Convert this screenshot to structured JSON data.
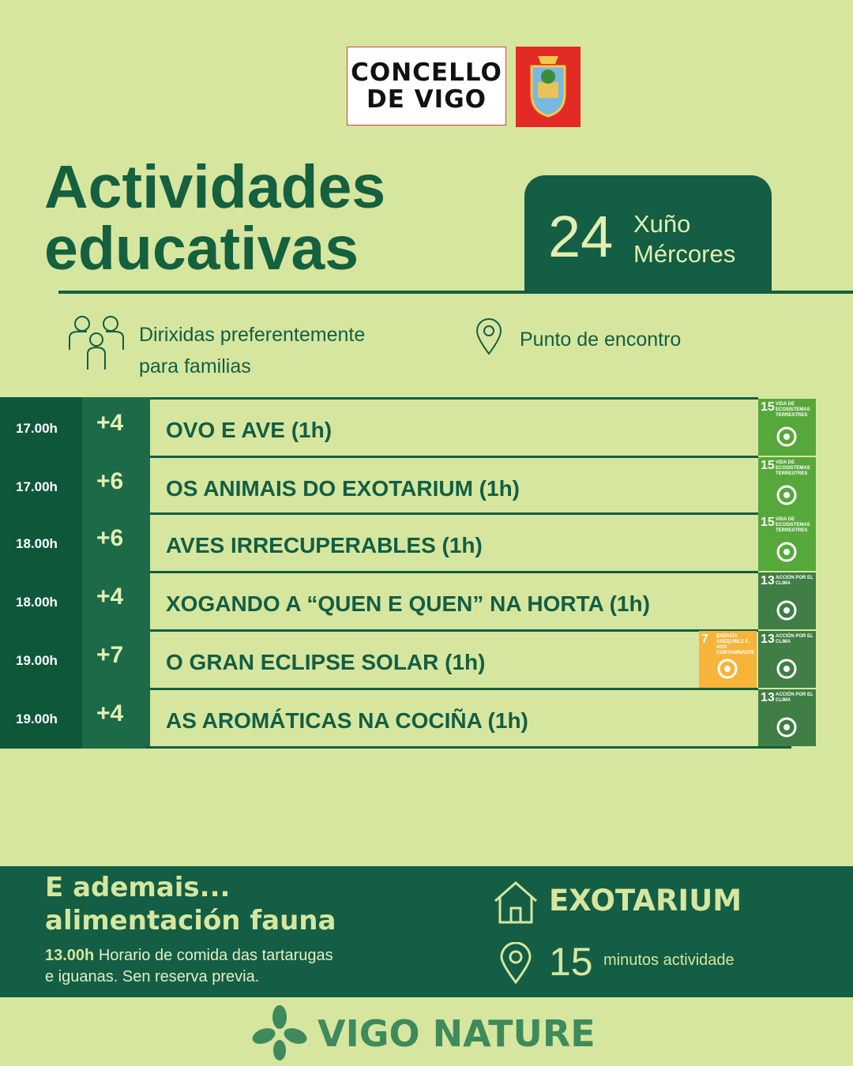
{
  "header": {
    "logo_lines": [
      "CONCELLO",
      "DE VIGO"
    ]
  },
  "title": [
    "Actividades",
    "educativas"
  ],
  "date": {
    "day": "24",
    "month": "Xuño",
    "weekday": "Mércores"
  },
  "info": {
    "audience": [
      "Dirixidas preferentemente",
      "para familias"
    ],
    "location": "Punto de encontro"
  },
  "schedule": [
    {
      "time": "17.00h",
      "age": "+4",
      "activity": "OVO E AVE (1h)",
      "badges": [
        {
          "number": "15",
          "label": "VIDA DE ECOSISTEMAS TERRESTRES",
          "color": "#56a83a"
        }
      ]
    },
    {
      "time": "17.00h",
      "age": "+6",
      "activity": "OS ANIMAIS DO EXOTARIUM (1h)",
      "badges": [
        {
          "number": "15",
          "label": "VIDA DE ECOSISTEMAS TERRESTRES",
          "color": "#56a83a"
        }
      ]
    },
    {
      "time": "18.00h",
      "age": "+6",
      "activity": "AVES IRRECUPERABLES (1h)",
      "badges": [
        {
          "number": "15",
          "label": "VIDA DE ECOSISTEMAS TERRESTRES",
          "color": "#56a83a"
        }
      ]
    },
    {
      "time": "18.00h",
      "age": "+4",
      "activity": "XOGANDO A “QUEN E QUEN” NA HORTA (1h)",
      "badges": [
        {
          "number": "13",
          "label": "ACCIÓN POR EL CLIMA",
          "color": "#3f7e44"
        }
      ]
    },
    {
      "time": "19.00h",
      "age": "+7",
      "activity": "O GRAN ECLIPSE SOLAR (1h)",
      "badges": [
        {
          "number": "7",
          "label": "ENERXÍA ASEQUIBLE E NON CONTAMINANTE",
          "color": "#f7b43a"
        },
        {
          "number": "13",
          "label": "ACCIÓN POR EL CLIMA",
          "color": "#3f7e44"
        }
      ]
    },
    {
      "time": "19.00h",
      "age": "+4",
      "activity": "AS AROMÁTICAS NA COCIÑA (1h)",
      "badges": [
        {
          "number": "13",
          "label": "ACCIÓN POR EL CLIMA",
          "color": "#3f7e44"
        }
      ]
    }
  ],
  "footer": {
    "heading": [
      "E ademais...",
      "alimentación fauna"
    ],
    "hour": "13.00h",
    "note": [
      "Horario de comida das tartarugas",
      "e iguanas. Sen reserva previa."
    ],
    "venue": "EXOTARIUM",
    "duration": "15",
    "duration_unit": "minutos actividade"
  },
  "brand": "VIGO NATURE"
}
